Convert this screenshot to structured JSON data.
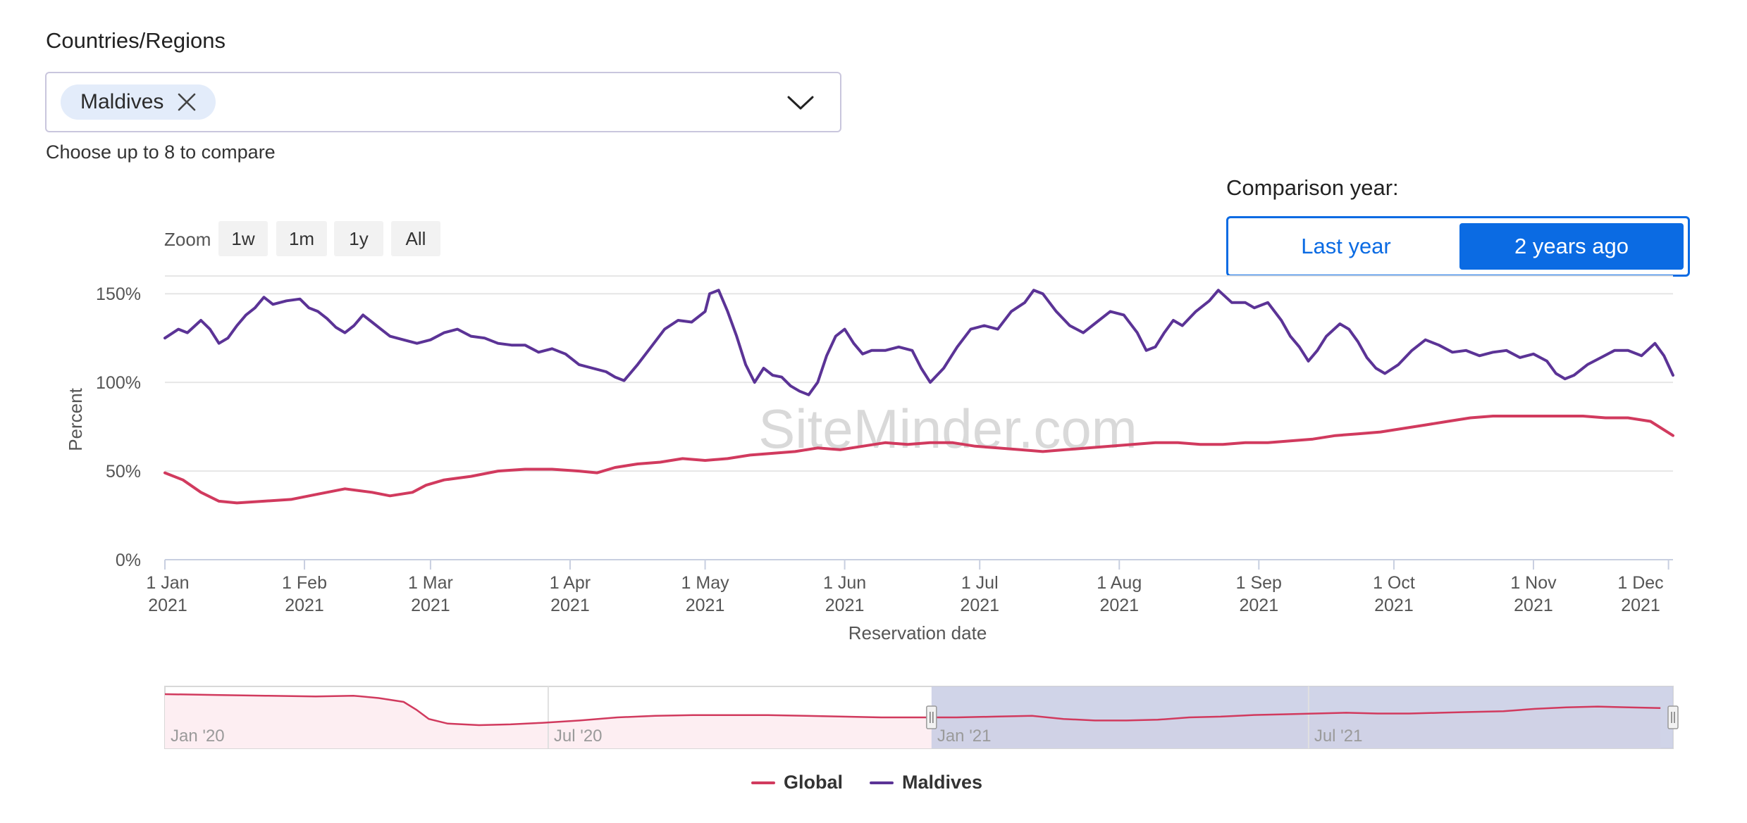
{
  "filters": {
    "countries_label": "Countries/Regions",
    "selected_chip": "Maldives",
    "helper_text": "Choose up to 8 to compare"
  },
  "comparison": {
    "label": "Comparison year:",
    "options": [
      "Last year",
      "2 years ago"
    ],
    "selected": "2 years ago"
  },
  "zoom": {
    "label": "Zoom",
    "buttons": [
      "1w",
      "1m",
      "1y",
      "All"
    ]
  },
  "watermark": "SiteMinder.com",
  "colors": {
    "global": "#d13a5e",
    "maldives": "#5b3396",
    "accent": "#0b6be3"
  },
  "chart_data": {
    "type": "line",
    "title": "",
    "xlabel": "Reservation date",
    "ylabel": "Percent",
    "ylim": [
      0,
      160
    ],
    "yticks": [
      "0%",
      "50%",
      "100%",
      "150%"
    ],
    "x_ticks": [
      [
        "1 Jan",
        "2021"
      ],
      [
        "1 Feb",
        "2021"
      ],
      [
        "1 Mar",
        "2021"
      ],
      [
        "1 Apr",
        "2021"
      ],
      [
        "1 May",
        "2021"
      ],
      [
        "1 Jun",
        "2021"
      ],
      [
        "1 Jul",
        "2021"
      ],
      [
        "1 Aug",
        "2021"
      ],
      [
        "1 Sep",
        "2021"
      ],
      [
        "1 Oct",
        "2021"
      ],
      [
        "1 Nov",
        "2021"
      ],
      [
        "1 Dec",
        "2021"
      ]
    ],
    "x_tick_days": [
      0,
      31,
      59,
      90,
      120,
      151,
      181,
      212,
      243,
      273,
      304,
      334
    ],
    "x_range_days": [
      0,
      335
    ],
    "grid": true,
    "legend_position": "bottom-center",
    "series": [
      {
        "name": "Global",
        "points": [
          [
            0,
            49
          ],
          [
            4,
            45
          ],
          [
            8,
            38
          ],
          [
            12,
            33
          ],
          [
            16,
            32
          ],
          [
            22,
            33
          ],
          [
            28,
            34
          ],
          [
            34,
            37
          ],
          [
            40,
            40
          ],
          [
            46,
            38
          ],
          [
            50,
            36
          ],
          [
            55,
            38
          ],
          [
            58,
            42
          ],
          [
            62,
            45
          ],
          [
            68,
            47
          ],
          [
            74,
            50
          ],
          [
            80,
            51
          ],
          [
            86,
            51
          ],
          [
            92,
            50
          ],
          [
            96,
            49
          ],
          [
            100,
            52
          ],
          [
            105,
            54
          ],
          [
            110,
            55
          ],
          [
            115,
            57
          ],
          [
            120,
            56
          ],
          [
            125,
            57
          ],
          [
            130,
            59
          ],
          [
            135,
            60
          ],
          [
            140,
            61
          ],
          [
            145,
            63
          ],
          [
            150,
            62
          ],
          [
            155,
            64
          ],
          [
            160,
            66
          ],
          [
            165,
            65
          ],
          [
            170,
            66
          ],
          [
            175,
            66
          ],
          [
            180,
            64
          ],
          [
            185,
            63
          ],
          [
            190,
            62
          ],
          [
            195,
            61
          ],
          [
            200,
            62
          ],
          [
            205,
            63
          ],
          [
            210,
            64
          ],
          [
            215,
            65
          ],
          [
            220,
            66
          ],
          [
            225,
            66
          ],
          [
            230,
            65
          ],
          [
            235,
            65
          ],
          [
            240,
            66
          ],
          [
            245,
            66
          ],
          [
            250,
            67
          ],
          [
            255,
            68
          ],
          [
            260,
            70
          ],
          [
            265,
            71
          ],
          [
            270,
            72
          ],
          [
            275,
            74
          ],
          [
            280,
            76
          ],
          [
            285,
            78
          ],
          [
            290,
            80
          ],
          [
            295,
            81
          ],
          [
            300,
            81
          ],
          [
            305,
            81
          ],
          [
            310,
            81
          ],
          [
            315,
            81
          ],
          [
            320,
            80
          ],
          [
            325,
            80
          ],
          [
            330,
            78
          ],
          [
            335,
            70
          ]
        ]
      },
      {
        "name": "Maldives",
        "points": [
          [
            0,
            125
          ],
          [
            3,
            130
          ],
          [
            5,
            128
          ],
          [
            8,
            135
          ],
          [
            10,
            130
          ],
          [
            12,
            122
          ],
          [
            14,
            125
          ],
          [
            16,
            132
          ],
          [
            18,
            138
          ],
          [
            20,
            142
          ],
          [
            22,
            148
          ],
          [
            24,
            144
          ],
          [
            27,
            146
          ],
          [
            30,
            147
          ],
          [
            32,
            142
          ],
          [
            34,
            140
          ],
          [
            36,
            136
          ],
          [
            38,
            131
          ],
          [
            40,
            128
          ],
          [
            42,
            132
          ],
          [
            44,
            138
          ],
          [
            46,
            134
          ],
          [
            48,
            130
          ],
          [
            50,
            126
          ],
          [
            53,
            124
          ],
          [
            56,
            122
          ],
          [
            59,
            124
          ],
          [
            62,
            128
          ],
          [
            65,
            130
          ],
          [
            68,
            126
          ],
          [
            71,
            125
          ],
          [
            74,
            122
          ],
          [
            77,
            121
          ],
          [
            80,
            121
          ],
          [
            83,
            117
          ],
          [
            86,
            119
          ],
          [
            89,
            116
          ],
          [
            92,
            110
          ],
          [
            95,
            108
          ],
          [
            98,
            106
          ],
          [
            100,
            103
          ],
          [
            102,
            101
          ],
          [
            105,
            110
          ],
          [
            108,
            120
          ],
          [
            111,
            130
          ],
          [
            114,
            135
          ],
          [
            117,
            134
          ],
          [
            120,
            140
          ],
          [
            121,
            150
          ],
          [
            123,
            152
          ],
          [
            125,
            140
          ],
          [
            127,
            126
          ],
          [
            129,
            110
          ],
          [
            131,
            100
          ],
          [
            133,
            108
          ],
          [
            135,
            104
          ],
          [
            137,
            103
          ],
          [
            139,
            98
          ],
          [
            141,
            95
          ],
          [
            143,
            93
          ],
          [
            145,
            100
          ],
          [
            147,
            115
          ],
          [
            149,
            126
          ],
          [
            151,
            130
          ],
          [
            153,
            122
          ],
          [
            155,
            116
          ],
          [
            157,
            118
          ],
          [
            160,
            118
          ],
          [
            163,
            120
          ],
          [
            166,
            118
          ],
          [
            168,
            108
          ],
          [
            170,
            100
          ],
          [
            173,
            108
          ],
          [
            176,
            120
          ],
          [
            179,
            130
          ],
          [
            182,
            132
          ],
          [
            185,
            130
          ],
          [
            188,
            140
          ],
          [
            191,
            145
          ],
          [
            193,
            152
          ],
          [
            195,
            150
          ],
          [
            198,
            140
          ],
          [
            201,
            132
          ],
          [
            204,
            128
          ],
          [
            207,
            134
          ],
          [
            210,
            140
          ],
          [
            213,
            138
          ],
          [
            216,
            128
          ],
          [
            218,
            118
          ],
          [
            220,
            120
          ],
          [
            222,
            128
          ],
          [
            224,
            135
          ],
          [
            226,
            132
          ],
          [
            229,
            140
          ],
          [
            232,
            146
          ],
          [
            234,
            152
          ],
          [
            237,
            145
          ],
          [
            240,
            145
          ],
          [
            242,
            142
          ],
          [
            245,
            145
          ],
          [
            248,
            135
          ],
          [
            250,
            126
          ],
          [
            252,
            120
          ],
          [
            254,
            112
          ],
          [
            256,
            118
          ],
          [
            258,
            126
          ],
          [
            261,
            133
          ],
          [
            263,
            130
          ],
          [
            265,
            123
          ],
          [
            267,
            114
          ],
          [
            269,
            108
          ],
          [
            271,
            105
          ],
          [
            274,
            110
          ],
          [
            277,
            118
          ],
          [
            280,
            124
          ],
          [
            283,
            121
          ],
          [
            286,
            117
          ],
          [
            289,
            118
          ],
          [
            292,
            115
          ],
          [
            295,
            117
          ],
          [
            298,
            118
          ],
          [
            301,
            114
          ],
          [
            304,
            116
          ],
          [
            307,
            112
          ],
          [
            309,
            105
          ],
          [
            311,
            102
          ],
          [
            313,
            104
          ],
          [
            316,
            110
          ],
          [
            319,
            114
          ],
          [
            322,
            118
          ],
          [
            325,
            118
          ],
          [
            328,
            115
          ],
          [
            331,
            122
          ],
          [
            333,
            115
          ],
          [
            335,
            104
          ]
        ]
      }
    ]
  },
  "navigator": {
    "labels": [
      "Jan '20",
      "Jul '20",
      "Jan '21",
      "Jul '21"
    ],
    "global_points": [
      [
        0,
        70
      ],
      [
        8,
        69
      ],
      [
        16,
        68
      ],
      [
        24,
        67
      ],
      [
        30,
        68
      ],
      [
        34,
        65
      ],
      [
        38,
        60
      ],
      [
        40,
        50
      ],
      [
        42,
        38
      ],
      [
        45,
        32
      ],
      [
        50,
        30
      ],
      [
        55,
        31
      ],
      [
        60,
        33
      ],
      [
        66,
        36
      ],
      [
        72,
        40
      ],
      [
        78,
        42
      ],
      [
        84,
        43
      ],
      [
        90,
        43
      ],
      [
        96,
        43
      ],
      [
        102,
        42
      ],
      [
        108,
        41
      ],
      [
        114,
        40
      ],
      [
        120,
        40
      ],
      [
        126,
        40
      ],
      [
        132,
        41
      ],
      [
        138,
        42
      ],
      [
        143,
        38
      ],
      [
        148,
        36
      ],
      [
        153,
        36
      ],
      [
        158,
        37
      ],
      [
        163,
        40
      ],
      [
        168,
        41
      ],
      [
        173,
        43
      ],
      [
        178,
        44
      ],
      [
        183,
        45
      ],
      [
        188,
        46
      ],
      [
        193,
        45
      ],
      [
        198,
        45
      ],
      [
        203,
        46
      ],
      [
        208,
        47
      ],
      [
        213,
        48
      ],
      [
        218,
        51
      ],
      [
        223,
        53
      ],
      [
        228,
        54
      ],
      [
        233,
        53
      ],
      [
        238,
        52
      ]
    ],
    "range_days": [
      0,
      240
    ],
    "selected_start_day": 122
  }
}
